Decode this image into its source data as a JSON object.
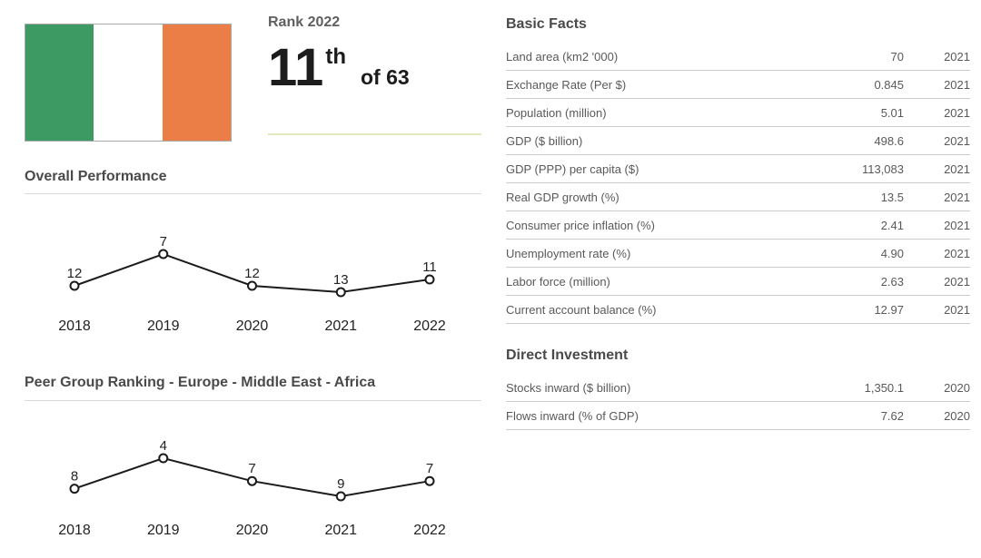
{
  "flag": {
    "country": "Ireland",
    "stripe_colors": [
      "#3E9A63",
      "#FFFFFF",
      "#EB7D46"
    ]
  },
  "rank": {
    "label": "Rank 2022",
    "value": "11",
    "suffix": "th",
    "of_total": "of 63"
  },
  "chart_data": [
    {
      "type": "line",
      "title": "Overall Performance",
      "categories": [
        "2018",
        "2019",
        "2020",
        "2021",
        "2022"
      ],
      "values": [
        12,
        7,
        12,
        13,
        11
      ],
      "value_axis_inverted": true,
      "grid": false,
      "legend": false,
      "marker": "open-circle"
    },
    {
      "type": "line",
      "title": "Peer Group Ranking - Europe - Middle East - Africa",
      "categories": [
        "2018",
        "2019",
        "2020",
        "2021",
        "2022"
      ],
      "values": [
        8,
        4,
        7,
        9,
        7
      ],
      "value_axis_inverted": true,
      "grid": false,
      "legend": false,
      "marker": "open-circle"
    }
  ],
  "basic_facts": {
    "title": "Basic Facts",
    "rows": [
      {
        "label": "Land area (km2 '000)",
        "value": "70",
        "year": "2021"
      },
      {
        "label": "Exchange Rate (Per $)",
        "value": "0.845",
        "year": "2021"
      },
      {
        "label": "Population (million)",
        "value": "5.01",
        "year": "2021"
      },
      {
        "label": "GDP ($ billion)",
        "value": "498.6",
        "year": "2021"
      },
      {
        "label": "GDP (PPP) per capita ($)",
        "value": "113,083",
        "year": "2021"
      },
      {
        "label": "Real GDP growth (%)",
        "value": "13.5",
        "year": "2021"
      },
      {
        "label": "Consumer price inflation (%)",
        "value": "2.41",
        "year": "2021"
      },
      {
        "label": "Unemployment rate (%)",
        "value": "4.90",
        "year": "2021"
      },
      {
        "label": "Labor force (million)",
        "value": "2.63",
        "year": "2021"
      },
      {
        "label": "Current account balance (%)",
        "value": "12.97",
        "year": "2021"
      }
    ]
  },
  "direct_investment": {
    "title": "Direct Investment",
    "rows": [
      {
        "label": "Stocks inward ($ billion)",
        "value": "1,350.1",
        "year": "2020"
      },
      {
        "label": "Flows inward (% of GDP)",
        "value": "7.62",
        "year": "2020"
      }
    ]
  },
  "colors": {
    "flag_green": "#3E9A63",
    "flag_orange": "#EB7D46",
    "rank_divider": "#E3E8BC",
    "section_divider": "#D9D9D9",
    "table_border": "#CBCBCB",
    "heading_text": "#4A4A4A",
    "body_text": "#595959",
    "chart_line": "#1B1B1B"
  }
}
